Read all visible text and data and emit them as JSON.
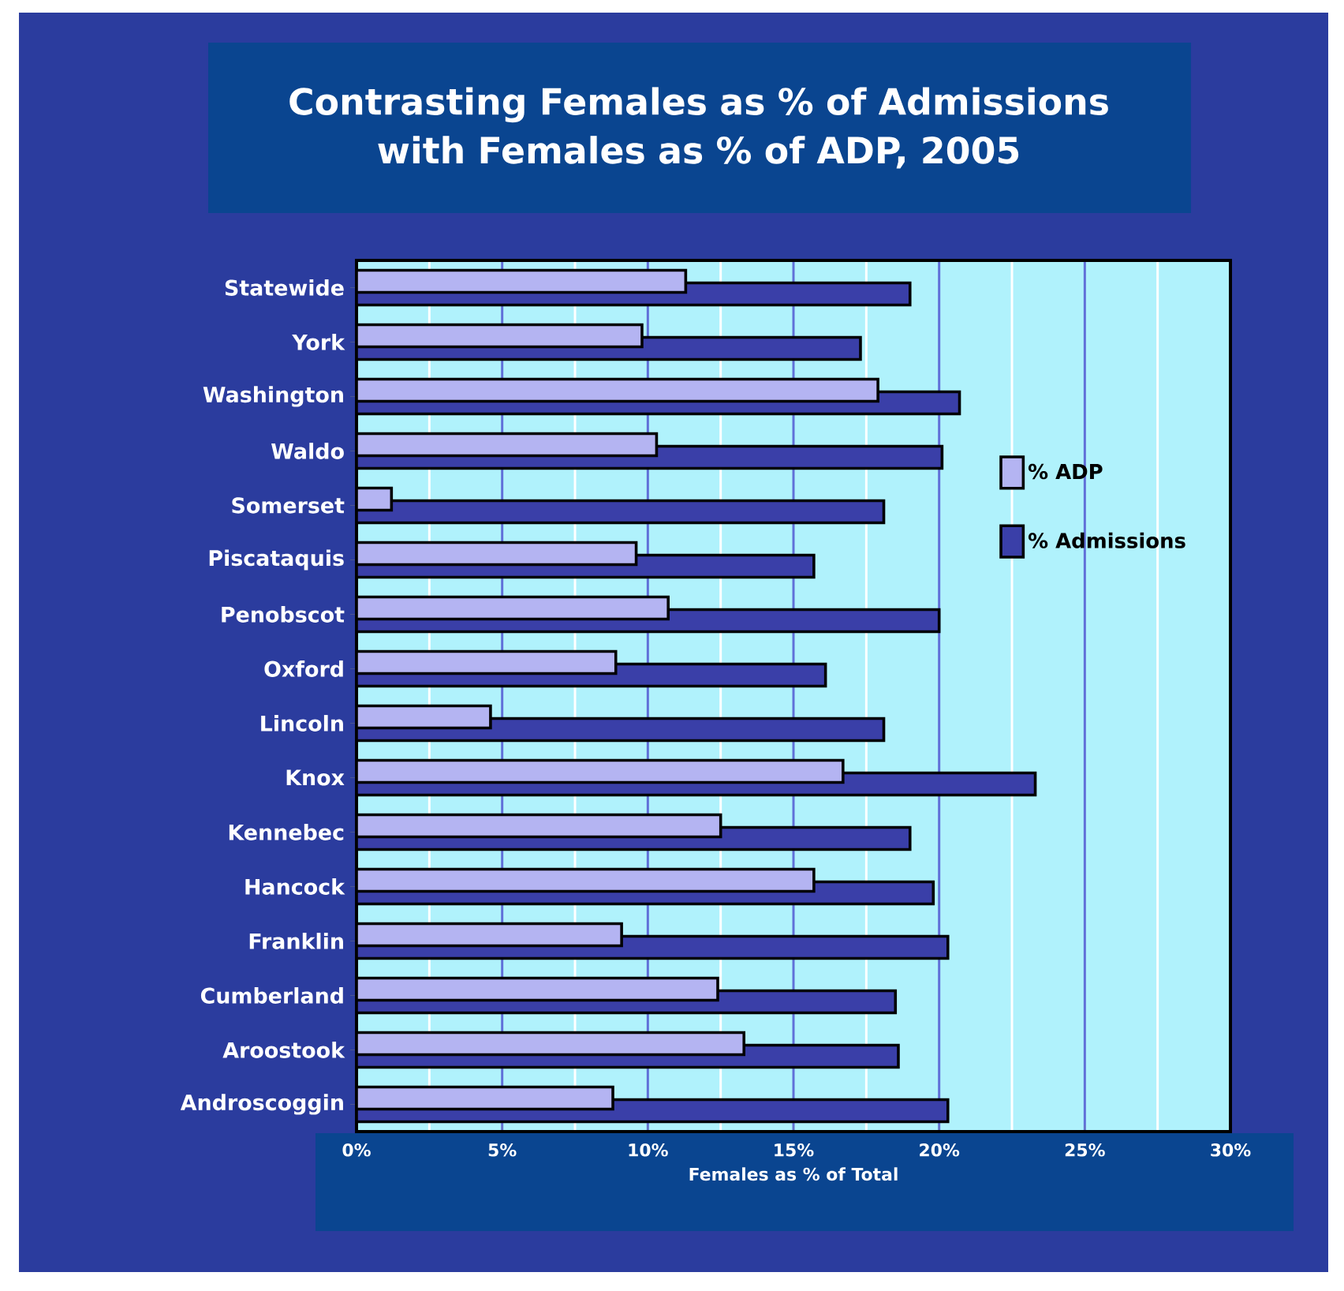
{
  "chart_data": {
    "type": "bar",
    "orientation": "horizontal",
    "title": "Contrasting Females as % of Admissions with Females as % of ADP, 2005",
    "xlabel": "Females as % of Total",
    "categories": [
      "Statewide",
      "York",
      "Washington",
      "Waldo",
      "Somerset",
      "Piscataquis",
      "Penobscot",
      "Oxford",
      "Lincoln",
      "Knox",
      "Kennebec",
      "Hancock",
      "Franklin",
      "Cumberland",
      "Aroostook",
      "Androscoggin"
    ],
    "series": [
      {
        "name": "% ADP",
        "color": "#b4b4f2",
        "values": [
          11.3,
          9.8,
          17.9,
          10.3,
          1.2,
          9.6,
          10.7,
          8.9,
          4.6,
          16.7,
          12.5,
          15.7,
          9.1,
          12.4,
          13.3,
          8.8
        ]
      },
      {
        "name": "% Admissions",
        "color": "#3a3fa8",
        "values": [
          19.0,
          17.3,
          20.7,
          20.1,
          18.1,
          15.7,
          20.0,
          16.1,
          18.1,
          23.3,
          19.0,
          19.8,
          20.3,
          18.5,
          18.6,
          20.3
        ]
      }
    ],
    "xlim": [
      0,
      30
    ],
    "xticks": [
      {
        "value": 0,
        "label": "0%"
      },
      {
        "value": 5,
        "label": "5%"
      },
      {
        "value": 10,
        "label": "10%"
      },
      {
        "value": 15,
        "label": "15%"
      },
      {
        "value": 20,
        "label": "20%"
      },
      {
        "value": 25,
        "label": "25%"
      },
      {
        "value": 30,
        "label": "30%"
      }
    ],
    "grid": "x",
    "legend": "right"
  }
}
